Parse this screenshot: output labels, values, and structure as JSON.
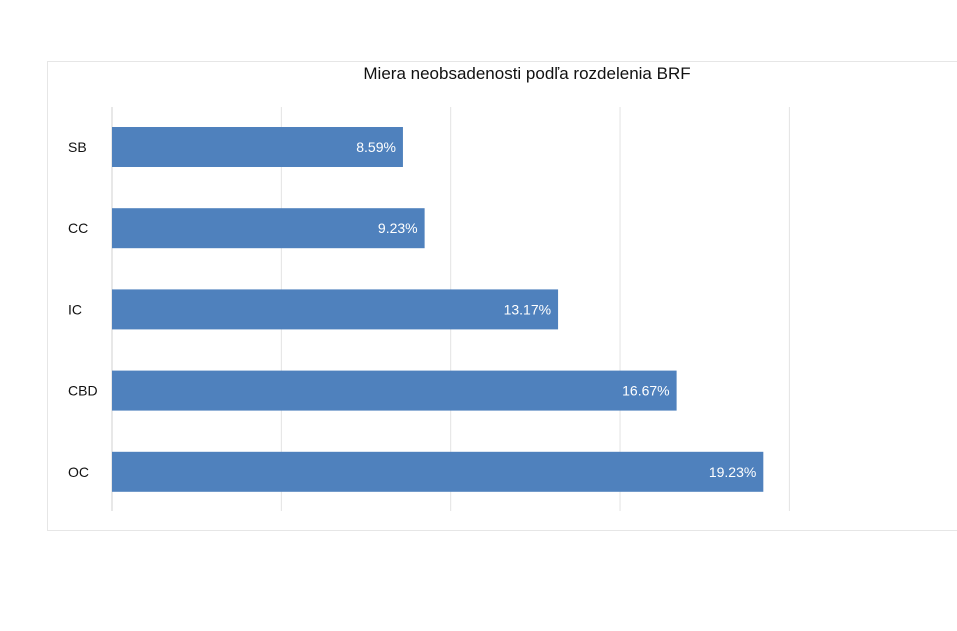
{
  "chart_data": {
    "type": "bar",
    "orientation": "horizontal",
    "title": "Miera neobsadenosti podľa rozdelenia BRF",
    "categories": [
      "SB",
      "CC",
      "IC",
      "CBD",
      "OC"
    ],
    "values": [
      8.59,
      9.23,
      13.17,
      16.67,
      19.23
    ],
    "value_labels": [
      "8.59%",
      "9.23%",
      "13.17%",
      "16.67%",
      "19.23%"
    ],
    "xlim": [
      0,
      25
    ],
    "grid": true,
    "legend": "none",
    "bar_color": "#4f81bd",
    "label_color": "#ffffff"
  }
}
